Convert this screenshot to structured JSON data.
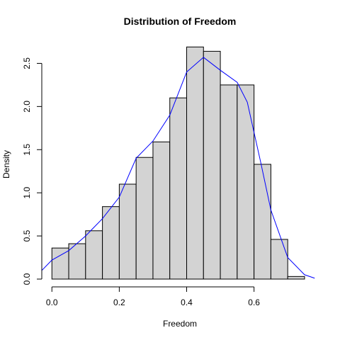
{
  "chart_data": {
    "type": "bar",
    "title": "Distribution of Freedom",
    "xlabel": "Freedom",
    "ylabel": "Density",
    "bin_edges": [
      0.0,
      0.05,
      0.1,
      0.15,
      0.2,
      0.25,
      0.3,
      0.35,
      0.4,
      0.45,
      0.5,
      0.55,
      0.6,
      0.65,
      0.7,
      0.75
    ],
    "values": [
      0.36,
      0.41,
      0.56,
      0.84,
      1.1,
      1.41,
      1.59,
      2.1,
      2.69,
      2.64,
      2.25,
      2.25,
      1.33,
      0.46,
      0.03
    ],
    "xlim": [
      -0.03,
      0.79
    ],
    "ylim": [
      0,
      2.75
    ],
    "x_ticks": [
      "0.0",
      "0.2",
      "0.4",
      "0.6"
    ],
    "x_tick_values": [
      0.0,
      0.2,
      0.4,
      0.6
    ],
    "y_ticks": [
      "0.0",
      "0.5",
      "1.0",
      "1.5",
      "2.0",
      "2.5"
    ],
    "y_tick_values": [
      0.0,
      0.5,
      1.0,
      1.5,
      2.0,
      2.5
    ],
    "density_line": {
      "color": "#0000ff",
      "x": [
        -0.03,
        0.0,
        0.05,
        0.1,
        0.15,
        0.2,
        0.25,
        0.3,
        0.35,
        0.4,
        0.45,
        0.5,
        0.55,
        0.58,
        0.62,
        0.65,
        0.7,
        0.75,
        0.78
      ],
      "y": [
        0.1,
        0.22,
        0.33,
        0.5,
        0.7,
        0.95,
        1.4,
        1.6,
        1.9,
        2.4,
        2.57,
        2.42,
        2.28,
        2.05,
        1.35,
        0.8,
        0.25,
        0.05,
        0.01
      ]
    },
    "bar_color": "#d3d3d3",
    "grid": false
  }
}
